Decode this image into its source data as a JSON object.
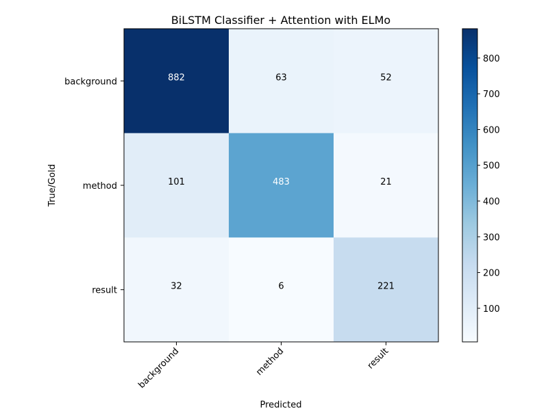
{
  "chart_data": {
    "type": "heatmap",
    "title": "BiLSTM Classifier + Attention with ELMo",
    "xlabel": "Predicted",
    "ylabel": "True/Gold",
    "x_categories": [
      "background",
      "method",
      "result"
    ],
    "y_categories": [
      "background",
      "method",
      "result"
    ],
    "values": [
      [
        882,
        63,
        52
      ],
      [
        101,
        483,
        21
      ],
      [
        32,
        6,
        221
      ]
    ],
    "colormap": "Blues",
    "color_range": [
      6,
      882
    ],
    "colorbar_ticks": [
      100,
      200,
      300,
      400,
      500,
      600,
      700,
      800
    ],
    "grid": false
  }
}
